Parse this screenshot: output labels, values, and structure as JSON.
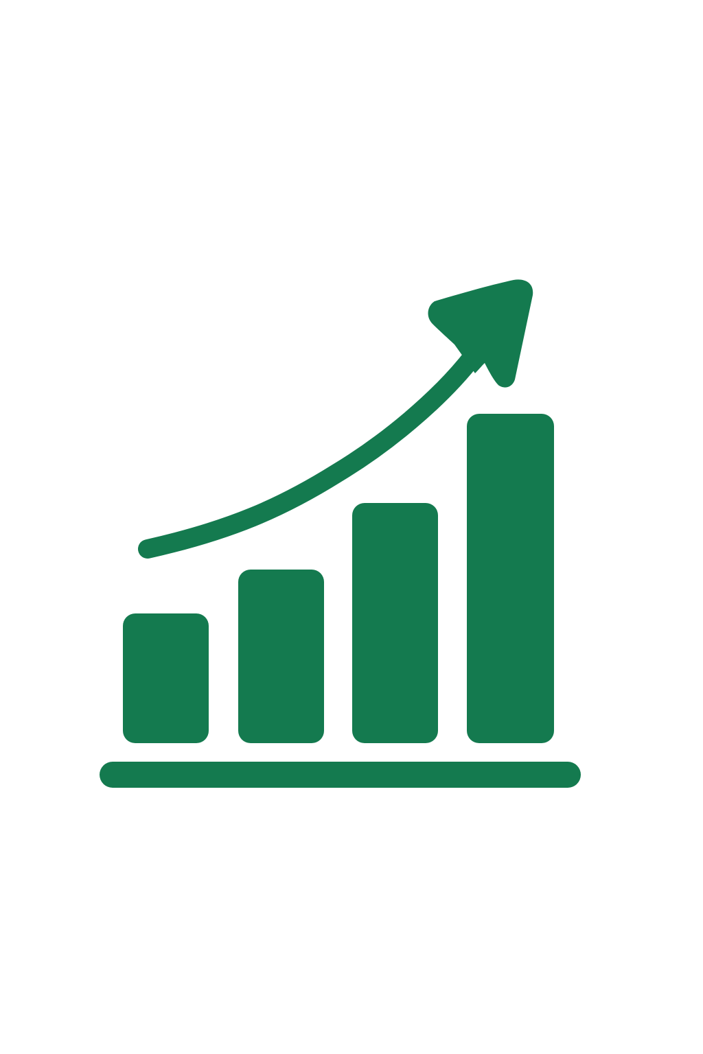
{
  "icon": {
    "name": "growth-chart-icon",
    "color": "#147a4f",
    "background": "#ffffff",
    "bar_levels": [
      0.39,
      0.53,
      0.73,
      1.0
    ],
    "trend_direction": "up-right"
  }
}
